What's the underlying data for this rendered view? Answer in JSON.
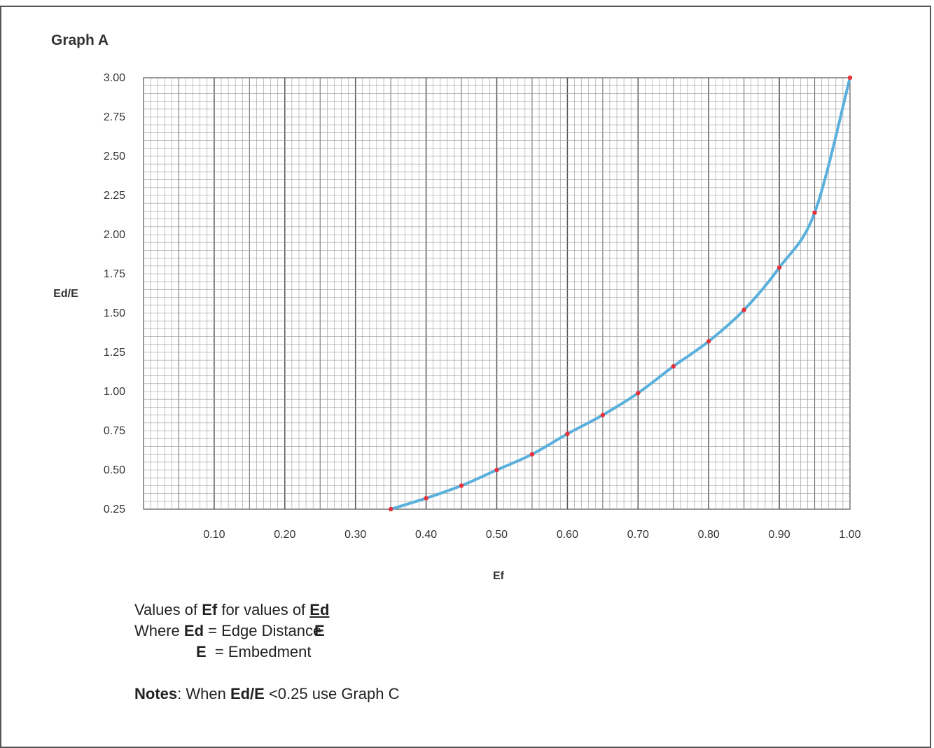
{
  "chart_data": {
    "type": "line",
    "title": "Graph A",
    "xlabel": "Ef",
    "ylabel": "Ed/E",
    "xlim": [
      0,
      1.0
    ],
    "ylim": [
      0.25,
      3.0
    ],
    "x_ticks": [
      "0.10",
      "0.20",
      "0.30",
      "0.40",
      "0.50",
      "0.60",
      "0.70",
      "0.80",
      "0.90",
      "1.00"
    ],
    "y_ticks": [
      "3.00",
      "2.75",
      "2.50",
      "2.25",
      "2.00",
      "1.75",
      "1.50",
      "1.25",
      "1.00",
      "0.75",
      "0.50",
      "0.25"
    ],
    "grid": true,
    "series": [
      {
        "color": "#5ab0dc",
        "marker_color": "#e8303a",
        "x": [
          0.35,
          0.4,
          0.45,
          0.5,
          0.55,
          0.6,
          0.65,
          0.7,
          0.75,
          0.8,
          0.85,
          0.9,
          0.95,
          1.0
        ],
        "y": [
          0.25,
          0.32,
          0.4,
          0.5,
          0.6,
          0.73,
          0.85,
          0.99,
          1.16,
          1.32,
          1.52,
          1.79,
          2.14,
          3.0
        ]
      }
    ]
  },
  "notes": {
    "line1_a": "Values of ",
    "line1_b": "Ef",
    "line1_c": " for values of ",
    "frac_num": "Ed",
    "frac_den": "E",
    "line2_a": "Where ",
    "line2_b": "Ed",
    "line2_c": " = Edge Distance",
    "line3_b": "E",
    "line3_c": "  = Embedment",
    "line4_a": "Notes",
    "line4_b": ": When ",
    "line4_c": "Ed/E",
    "line4_d": " <0.25 use Graph C"
  }
}
